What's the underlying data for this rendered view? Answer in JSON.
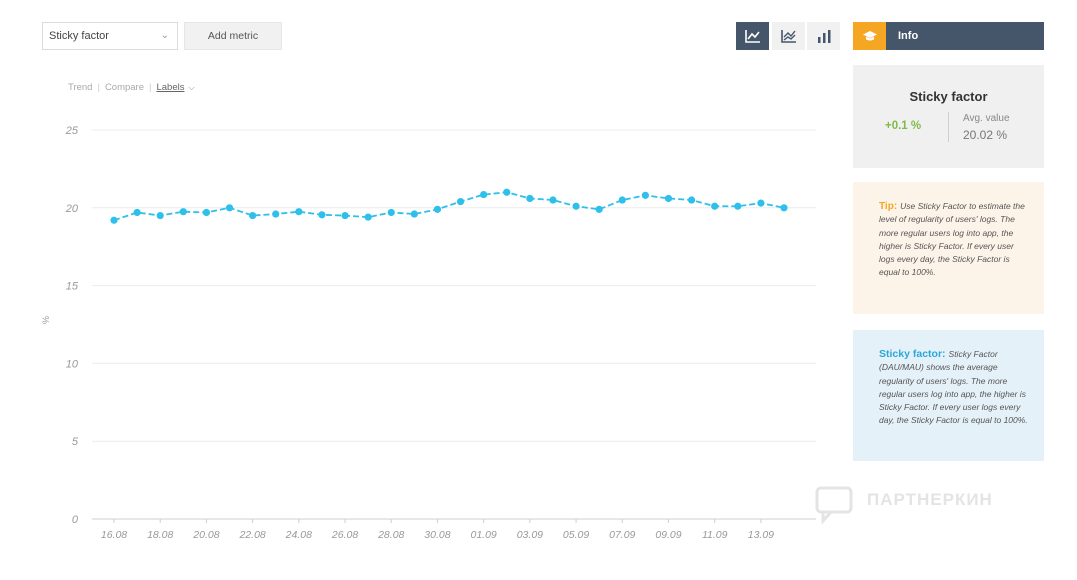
{
  "toolbar": {
    "metric_select": "Sticky factor",
    "add_metric": "Add metric"
  },
  "info": {
    "label": "Info"
  },
  "subtabs": {
    "trend": "Trend",
    "compare": "Compare",
    "labels": "Labels"
  },
  "stat_card": {
    "title": "Sticky factor",
    "change": "+0.1 %",
    "avg_label": "Avg. value",
    "avg_value": "20.02 %"
  },
  "tip_card": {
    "lead": "Tip:",
    "text": "Use Sticky Factor to estimate the level of regularity of users' logs. The more regular users log into app, the higher is Sticky Factor. If every user logs every day, the Sticky Factor is equal to 100%."
  },
  "sticky_card": {
    "lead": "Sticky factor:",
    "text": "Sticky Factor (DAU/MAU) shows the average regularity of users' logs. The more regular users log into app, the higher is Sticky Factor. If every user logs every day, the Sticky Factor is equal to 100%."
  },
  "watermark": "ПАРТНЕРКИН",
  "colors": {
    "accent": "#45566a",
    "series": "#2ec0ea",
    "tip": "#f5a623",
    "positive": "#7dbb4a"
  },
  "chart_data": {
    "type": "line",
    "ylabel": "%",
    "ylim": [
      0,
      25
    ],
    "yticks": [
      0,
      5,
      10,
      15,
      20,
      25
    ],
    "xtick_labels": [
      "16.08",
      "18.08",
      "20.08",
      "22.08",
      "24.08",
      "26.08",
      "28.08",
      "30.08",
      "01.09",
      "03.09",
      "05.09",
      "07.09",
      "09.09",
      "11.09",
      "13.09"
    ],
    "x": [
      "16.08",
      "17.08",
      "18.08",
      "19.08",
      "20.08",
      "21.08",
      "22.08",
      "23.08",
      "24.08",
      "25.08",
      "26.08",
      "27.08",
      "28.08",
      "29.08",
      "30.08",
      "31.08",
      "01.09",
      "02.09",
      "03.09",
      "04.09",
      "05.09",
      "06.09",
      "07.09",
      "08.09",
      "09.09",
      "10.09",
      "11.09",
      "12.09",
      "13.09",
      "14.09"
    ],
    "series": [
      {
        "values": [
          19.2,
          19.7,
          19.5,
          19.75,
          19.7,
          20.0,
          19.5,
          19.6,
          19.75,
          19.55,
          19.5,
          19.4,
          19.7,
          19.6,
          19.9,
          20.4,
          20.85,
          21.0,
          20.6,
          20.5,
          20.1,
          19.9,
          20.5,
          20.8,
          20.6,
          20.5,
          20.1,
          20.1,
          20.3,
          20.0
        ]
      }
    ],
    "grid": true,
    "legend": "none"
  }
}
